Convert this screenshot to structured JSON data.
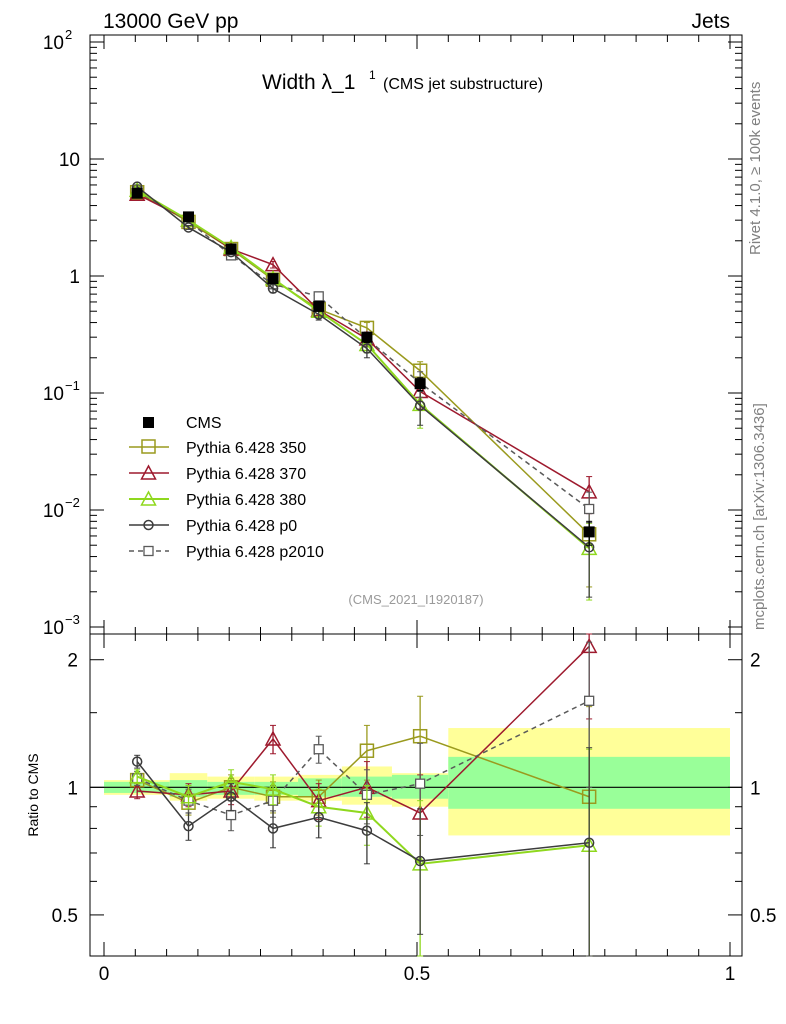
{
  "header": {
    "left_label": "13000 GeV pp",
    "right_label": "Jets"
  },
  "title": {
    "main": "Width λ_1",
    "superscript": "1",
    "suffix": "(CMS jet substructure)"
  },
  "side_labels": {
    "rivet": "Rivet 4.1.0, ≥ 100k events",
    "mcplots": "mcplots.cern.ch [arXiv:1306.3436]"
  },
  "analysis_id": "(CMS_2021_I1920187)",
  "colors": {
    "cms": "#000000",
    "p350": "#9a9a1e",
    "p370": "#9e1a2e",
    "p380": "#8fd81e",
    "p0": "#3c3c3c",
    "p2010": "#5a5a5a",
    "band_inner": "#99ff99",
    "band_outer": "#ffff99"
  },
  "chart_data": [
    {
      "type": "line",
      "panel": "main",
      "yscale": "log",
      "xlim": [
        0,
        1
      ],
      "ylim": [
        0.001,
        100
      ],
      "y_ticks": [
        {
          "base": "10",
          "exp": "2"
        },
        {
          "base": "10",
          "exp": ""
        },
        {
          "base": "1",
          "exp": ""
        },
        {
          "base": "10",
          "exp": "−1"
        },
        {
          "base": "10",
          "exp": "−2"
        },
        {
          "base": "10",
          "exp": "−3"
        }
      ],
      "x": [
        0.053,
        0.135,
        0.203,
        0.27,
        0.343,
        0.42,
        0.505,
        0.775
      ],
      "series": [
        {
          "key": "cms",
          "name": "CMS",
          "values": [
            5.1,
            3.2,
            1.7,
            0.95,
            0.55,
            0.3,
            0.12,
            0.0065
          ],
          "errors": [
            0.3,
            0.2,
            0.1,
            0.06,
            0.05,
            0.03,
            0.015,
            0.0015
          ]
        },
        {
          "key": "p350",
          "name": "Pythia 6.428 350",
          "values": [
            5.2,
            2.9,
            1.7,
            0.93,
            0.52,
            0.36,
            0.155,
            0.0062
          ],
          "errors": [
            0.2,
            0.1,
            0.08,
            0.06,
            0.05,
            0.04,
            0.03,
            0.004
          ]
        },
        {
          "key": "p370",
          "name": "Pythia 6.428 370",
          "values": [
            5.0,
            3.0,
            1.7,
            1.25,
            0.51,
            0.29,
            0.103,
            0.0143
          ],
          "errors": [
            0.2,
            0.1,
            0.08,
            0.08,
            0.05,
            0.04,
            0.03,
            0.005
          ]
        },
        {
          "key": "p380",
          "name": "Pythia 6.428 380",
          "values": [
            5.4,
            3.0,
            1.75,
            0.95,
            0.5,
            0.26,
            0.08,
            0.0047
          ],
          "errors": [
            0.2,
            0.1,
            0.08,
            0.06,
            0.05,
            0.04,
            0.03,
            0.003
          ]
        },
        {
          "key": "p0",
          "name": "Pythia 6.428 p0",
          "values": [
            5.8,
            2.6,
            1.6,
            0.78,
            0.47,
            0.24,
            0.078,
            0.0048
          ],
          "errors": [
            0.2,
            0.1,
            0.08,
            0.06,
            0.05,
            0.04,
            0.025,
            0.003
          ]
        },
        {
          "key": "p2010",
          "name": "Pythia 6.428 p2010",
          "values": [
            5.3,
            2.95,
            1.5,
            0.85,
            0.67,
            0.29,
            0.122,
            0.0102
          ],
          "errors": [
            0.2,
            0.1,
            0.08,
            0.06,
            0.05,
            0.04,
            0.03,
            0.004
          ]
        }
      ]
    },
    {
      "type": "line",
      "panel": "ratio",
      "ylabel": "Ratio to CMS",
      "yscale": "log",
      "xlim": [
        0,
        1
      ],
      "ylim": [
        0.4,
        2.3
      ],
      "y_tick_labels": [
        "2",
        "1",
        "0.5"
      ],
      "y_tick_values": [
        2,
        1,
        0.5
      ],
      "x_tick_labels": [
        "0",
        "0.5",
        "1"
      ],
      "x_tick_values": [
        0,
        0.5,
        1
      ],
      "x": [
        0.053,
        0.135,
        0.203,
        0.27,
        0.343,
        0.42,
        0.505,
        0.775
      ],
      "bands": [
        {
          "x0": 0.0,
          "x1": 0.105,
          "inner": [
            0.97,
            1.03
          ],
          "outer": [
            0.96,
            1.04
          ]
        },
        {
          "x0": 0.105,
          "x1": 0.165,
          "inner": [
            0.95,
            1.04
          ],
          "outer": [
            0.93,
            1.08
          ]
        },
        {
          "x0": 0.165,
          "x1": 0.24,
          "inner": [
            0.96,
            1.03
          ],
          "outer": [
            0.94,
            1.06
          ]
        },
        {
          "x0": 0.24,
          "x1": 0.31,
          "inner": [
            0.96,
            1.03
          ],
          "outer": [
            0.93,
            1.06
          ]
        },
        {
          "x0": 0.31,
          "x1": 0.38,
          "inner": [
            0.95,
            1.05
          ],
          "outer": [
            0.93,
            1.07
          ]
        },
        {
          "x0": 0.38,
          "x1": 0.46,
          "inner": [
            0.95,
            1.06
          ],
          "outer": [
            0.91,
            1.12
          ]
        },
        {
          "x0": 0.46,
          "x1": 0.55,
          "inner": [
            0.94,
            1.07
          ],
          "outer": [
            0.9,
            1.08
          ]
        },
        {
          "x0": 0.55,
          "x1": 1.0,
          "inner": [
            0.89,
            1.18
          ],
          "outer": [
            0.77,
            1.38
          ]
        }
      ],
      "series": [
        {
          "key": "p350",
          "values": [
            1.04,
            0.92,
            1.0,
            0.95,
            0.95,
            1.22,
            1.32,
            0.95
          ],
          "errors": [
            0.04,
            0.06,
            0.07,
            0.08,
            0.09,
            0.18,
            0.32,
            0.6
          ]
        },
        {
          "key": "p370",
          "values": [
            0.98,
            0.96,
            0.98,
            1.3,
            0.93,
            1.0,
            0.87,
            2.15
          ],
          "errors": [
            0.04,
            0.06,
            0.07,
            0.1,
            0.09,
            0.15,
            0.2,
            0.7
          ]
        },
        {
          "key": "p380",
          "values": [
            1.06,
            0.95,
            1.03,
            0.99,
            0.9,
            0.87,
            0.66,
            0.73
          ],
          "errors": [
            0.04,
            0.06,
            0.07,
            0.08,
            0.09,
            0.14,
            0.27,
            0.5
          ]
        },
        {
          "key": "p0",
          "values": [
            1.15,
            0.81,
            0.95,
            0.8,
            0.85,
            0.79,
            0.67,
            0.74
          ],
          "errors": [
            0.04,
            0.06,
            0.07,
            0.08,
            0.09,
            0.13,
            0.22,
            0.5
          ]
        },
        {
          "key": "p2010",
          "values": [
            1.05,
            0.93,
            0.86,
            0.93,
            1.23,
            0.96,
            1.02,
            1.6
          ],
          "errors": [
            0.04,
            0.06,
            0.07,
            0.08,
            0.09,
            0.14,
            0.25,
            0.6
          ]
        }
      ]
    }
  ]
}
